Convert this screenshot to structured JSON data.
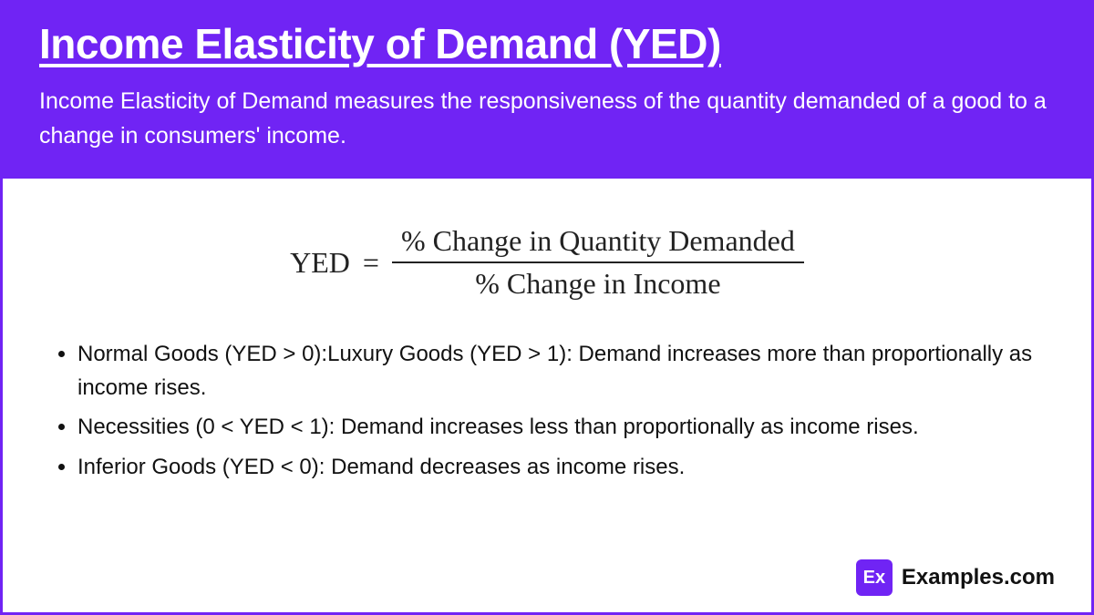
{
  "colors": {
    "primary": "#7024f4",
    "text": "#111111",
    "white": "#ffffff"
  },
  "header": {
    "title": "Income Elasticity of Demand (YED)",
    "description": "Income Elasticity of Demand measures the responsiveness of the quantity demanded of a good to a change in consumers' income."
  },
  "formula": {
    "lhs": "YED",
    "equals": "=",
    "numerator": "% Change in Quantity Demanded",
    "denominator": "% Change in Income"
  },
  "bullets": [
    "Normal Goods (YED > 0):Luxury Goods (YED > 1): Demand increases more than proportionally as income rises.",
    "Necessities (0 < YED < 1): Demand increases less than proportionally as income rises.",
    "Inferior Goods (YED < 0): Demand decreases as income rises."
  ],
  "footer": {
    "logo_abbrev": "Ex",
    "logo_text": "Examples.com"
  }
}
